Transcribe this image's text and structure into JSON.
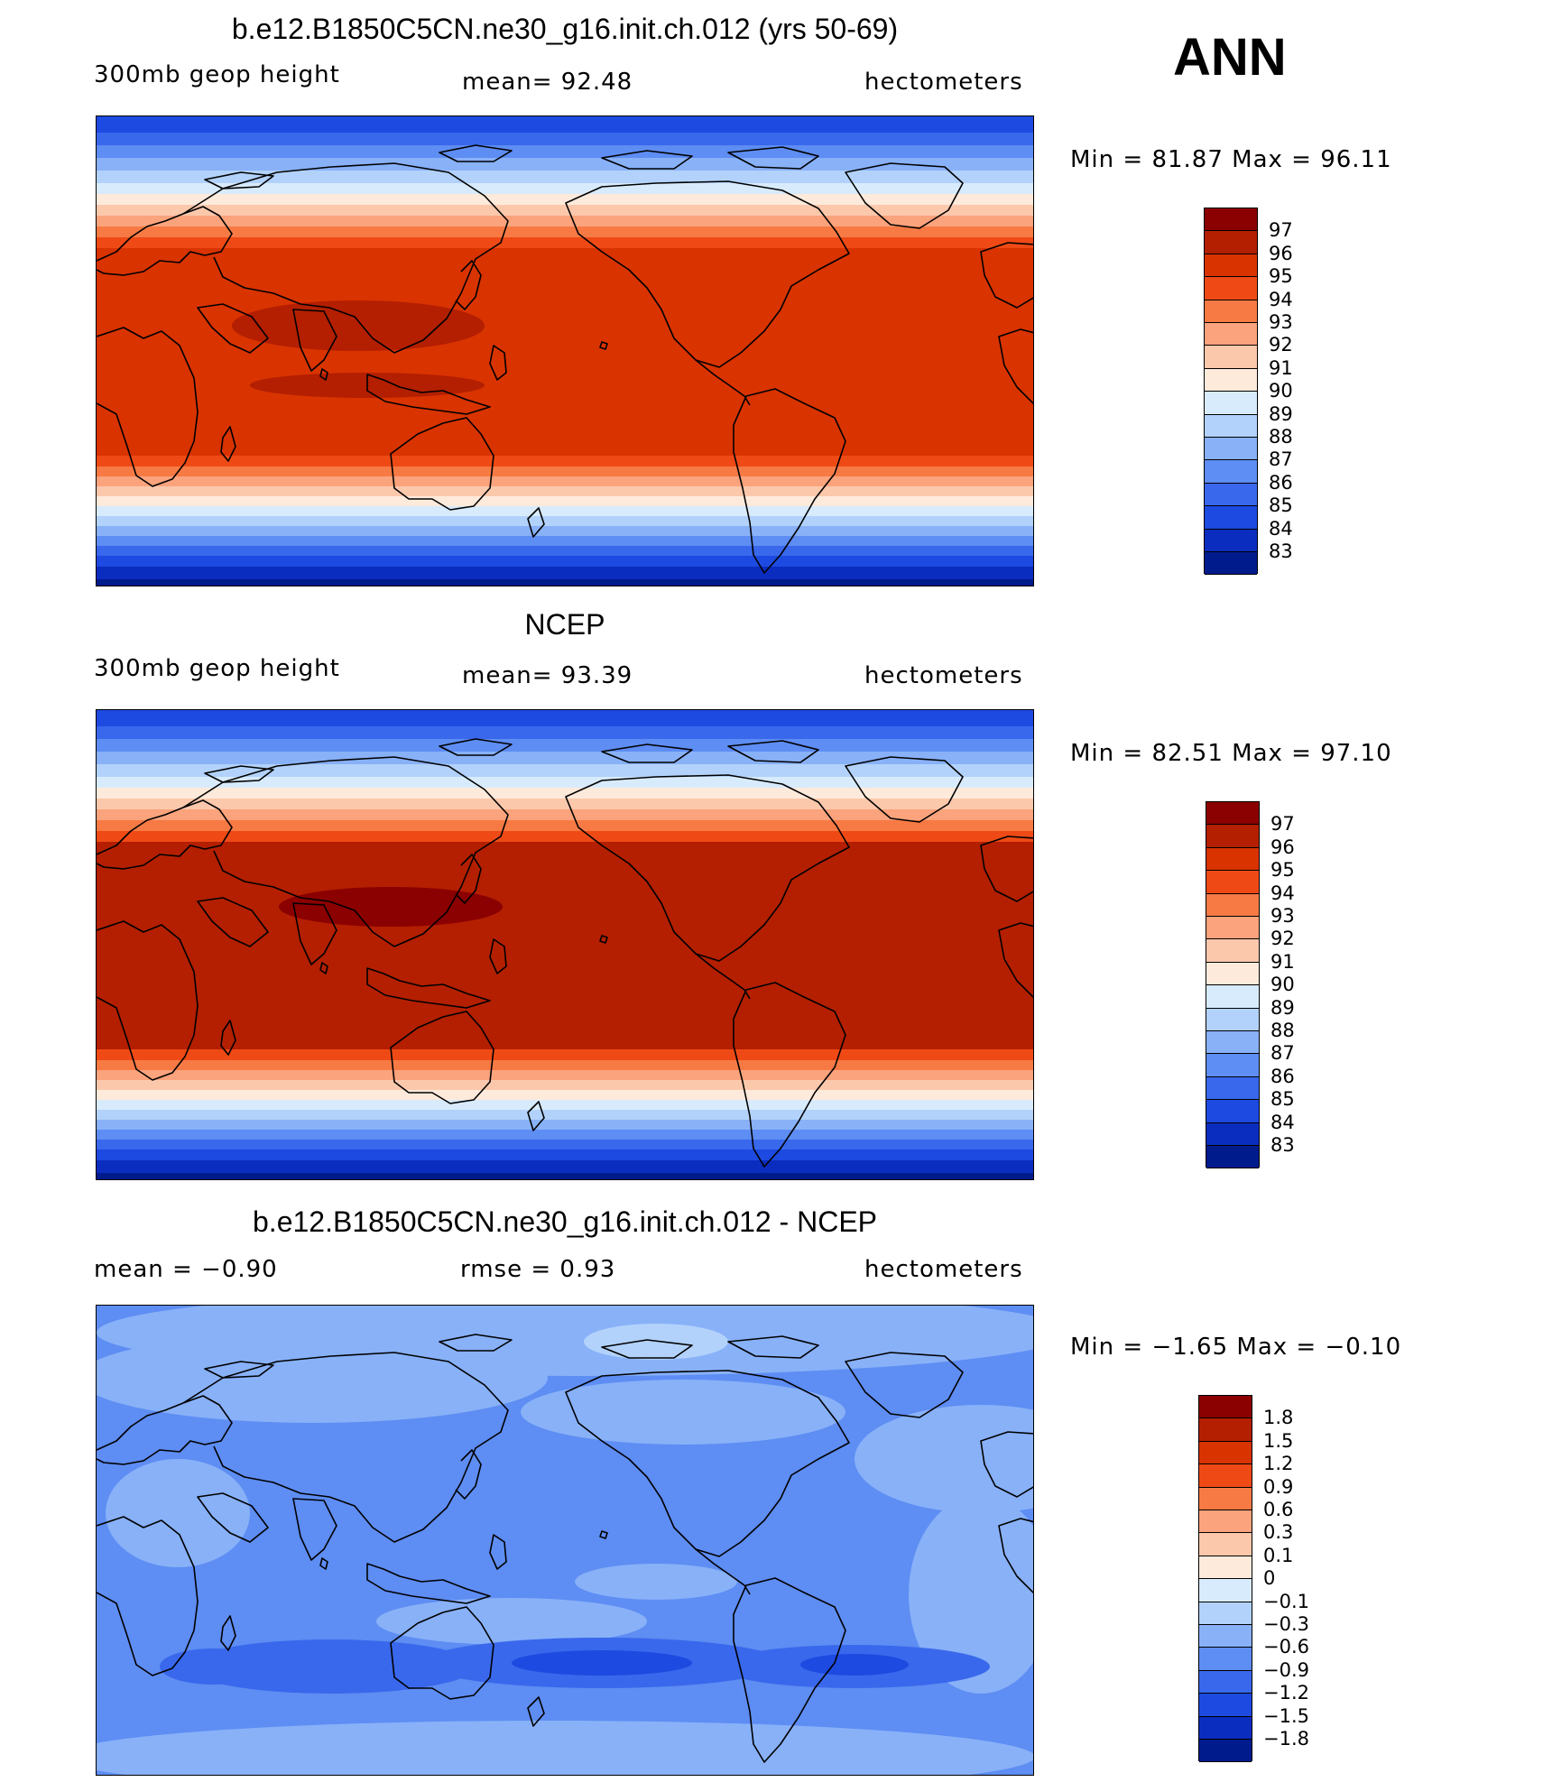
{
  "chart_data": {
    "type": "heatmap",
    "season": "ANN",
    "panels": [
      {
        "title": "b.e12.B1850C5CN.ne30_g16.init.ch.012 (yrs 50-69)",
        "left_label": "300mb geop height",
        "center_label": "mean=  92.48",
        "units": "hectometers",
        "min_max": "Min =   81.87 Max =   96.11",
        "min": 81.87,
        "max": 96.11,
        "mean": 92.48,
        "colorbar_labels": [
          "97",
          "96",
          "95",
          "94",
          "93",
          "92",
          "91",
          "90",
          "89",
          "88",
          "87",
          "86",
          "85",
          "84",
          "83"
        ],
        "colors": [
          "#8b0000",
          "#b31f00",
          "#d93300",
          "#ef4a16",
          "#f77a45",
          "#fba37c",
          "#fcc8ac",
          "#feeadb",
          "#d8ebfc",
          "#b2d2fb",
          "#88b1f8",
          "#5e8df3",
          "#3968ec",
          "#1d4ae0",
          "#0b2dbf",
          "#001b8c"
        ]
      },
      {
        "title": "NCEP",
        "left_label": "300mb geop height",
        "center_label": "mean=  93.39",
        "units": "hectometers",
        "min_max": "Min =   82.51 Max =   97.10",
        "min": 82.51,
        "max": 97.1,
        "mean": 93.39,
        "colorbar_labels": [
          "97",
          "96",
          "95",
          "94",
          "93",
          "92",
          "91",
          "90",
          "89",
          "88",
          "87",
          "86",
          "85",
          "84",
          "83"
        ],
        "colors": [
          "#8b0000",
          "#b31f00",
          "#d93300",
          "#ef4a16",
          "#f77a45",
          "#fba37c",
          "#fcc8ac",
          "#feeadb",
          "#d8ebfc",
          "#b2d2fb",
          "#88b1f8",
          "#5e8df3",
          "#3968ec",
          "#1d4ae0",
          "#0b2dbf",
          "#001b8c"
        ]
      },
      {
        "title": "b.e12.B1850C5CN.ne30_g16.init.ch.012 - NCEP",
        "left_label": "mean =  −0.90",
        "center_label": "rmse =    0.93",
        "units": "hectometers",
        "min_max": "Min =  −1.65 Max =  −0.10",
        "min": -1.65,
        "max": -0.1,
        "mean": -0.9,
        "rmse": 0.93,
        "colorbar_labels": [
          "1.8",
          "1.5",
          "1.2",
          "0.9",
          "0.6",
          "0.3",
          "0.1",
          "0",
          "−0.1",
          "−0.3",
          "−0.6",
          "−0.9",
          "−1.2",
          "−1.5",
          "−1.8"
        ],
        "colors": [
          "#8b0000",
          "#b31f00",
          "#d93300",
          "#ef4a16",
          "#f77a45",
          "#fba37c",
          "#fcc8ac",
          "#feeadb",
          "#d8ebfc",
          "#b2d2fb",
          "#88b1f8",
          "#5e8df3",
          "#3968ec",
          "#1d4ae0",
          "#0b2dbf",
          "#001b8c"
        ]
      }
    ]
  }
}
